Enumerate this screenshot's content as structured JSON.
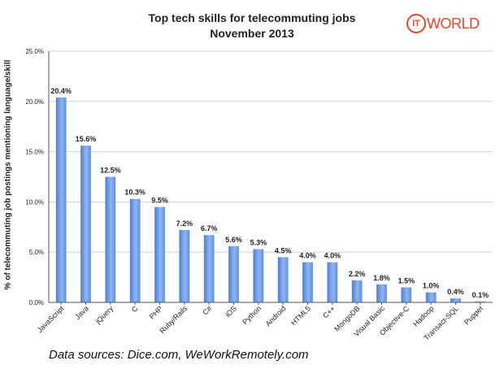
{
  "chart_data": {
    "type": "bar",
    "title": "Top tech skills for telecommuting jobs",
    "subtitle": "November 2013",
    "ylabel": "% of telecommuting job postings mentioning language/skill",
    "xlabel": "",
    "ylim": [
      0,
      25
    ],
    "yticks": [
      "0.0%",
      "5.0%",
      "10.0%",
      "15.0%",
      "20.0%",
      "25.0%"
    ],
    "grid": true,
    "categories": [
      "JavaScript",
      "Java",
      "jQuery",
      "C",
      "PHP",
      "Ruby/Rails",
      "C#",
      "iOS",
      "Python",
      "Android",
      "HTML5",
      "C++",
      "MongoDB",
      "Visual Basic",
      "Objective-C",
      "Hadoop",
      "Transact-SQL",
      "Puppet"
    ],
    "values": [
      20.4,
      15.6,
      12.5,
      10.3,
      9.5,
      7.2,
      6.7,
      5.6,
      5.3,
      4.5,
      4.0,
      4.0,
      2.2,
      1.8,
      1.5,
      1.0,
      0.4,
      0.1
    ],
    "labels": [
      "20.4%",
      "15.6%",
      "12.5%",
      "10.3%",
      "9.5%",
      "7.2%",
      "6.7%",
      "5.6%",
      "5.3%",
      "4.5%",
      "4.0%",
      "4.0%",
      "2.2%",
      "1.8%",
      "1.5%",
      "1.0%",
      "0.4%",
      "0.1%"
    ],
    "bar_color": "#5b8fe0"
  },
  "logo": {
    "circle_text": "IT",
    "text": "WORLD",
    "color": "#e8462a"
  },
  "source": "Data sources: Dice.com, WeWorkRemotely.com"
}
